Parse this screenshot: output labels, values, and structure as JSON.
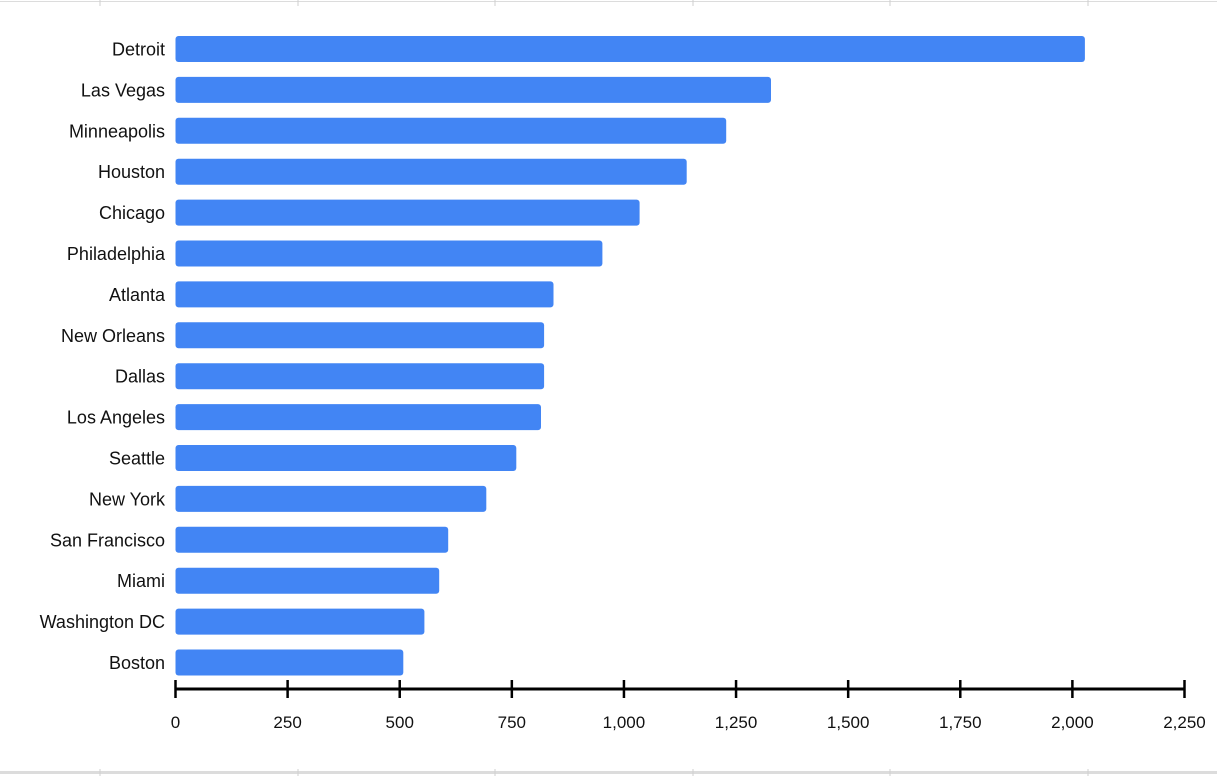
{
  "chart_data": {
    "type": "bar",
    "orientation": "horizontal",
    "title": "",
    "xlabel": "",
    "ylabel": "",
    "categories": [
      "Detroit",
      "Las Vegas",
      "Minneapolis",
      "Houston",
      "Chicago",
      "Philadelphia",
      "Atlanta",
      "New Orleans",
      "Dallas",
      "Los Angeles",
      "Seattle",
      "New York",
      "San Francisco",
      "Miami",
      "Washington DC",
      "Boston"
    ],
    "values": [
      2028,
      1328,
      1228,
      1140,
      1035,
      952,
      843,
      822,
      822,
      815,
      760,
      693,
      608,
      588,
      555,
      508
    ],
    "xlim": [
      0,
      2250
    ],
    "x_ticks": [
      0,
      250,
      500,
      750,
      1000,
      1250,
      1500,
      1750,
      2000,
      2250
    ],
    "x_tick_labels": [
      "0",
      "250",
      "500",
      "750",
      "1,000",
      "1,250",
      "1,500",
      "1,750",
      "2,000",
      "2,250"
    ],
    "bar_color": "#4285f4",
    "axis_color": "#000000",
    "grid": false,
    "legend": "none"
  }
}
